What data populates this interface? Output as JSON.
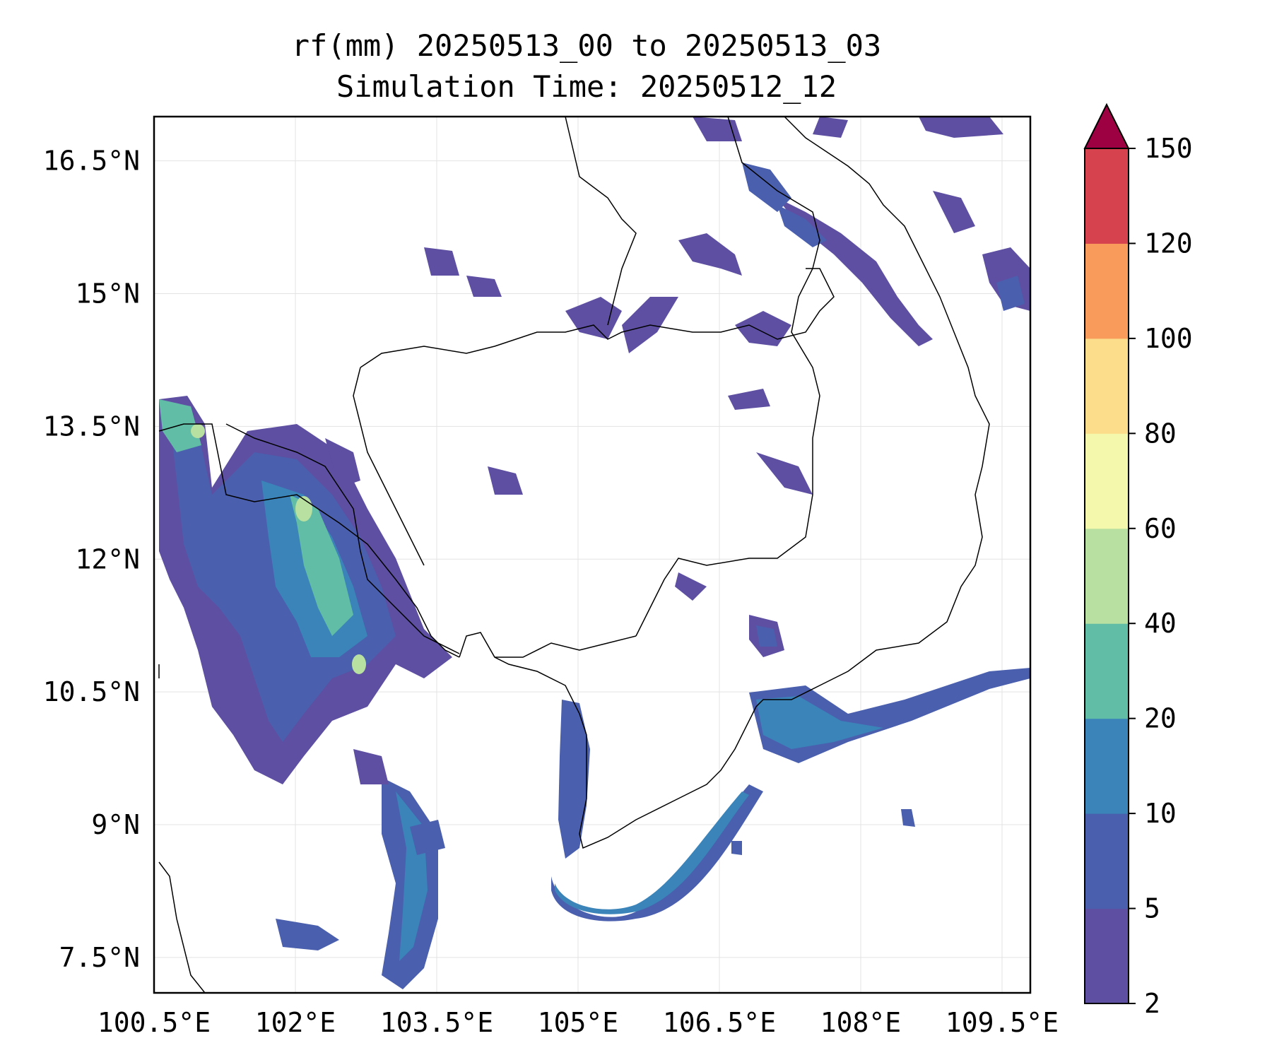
{
  "title_line1": "rf(mm) 20250513_00 to 20250513_03",
  "title_line2": "Simulation Time: 20250512_12",
  "map": {
    "lon_ticks": [
      "100.5°E",
      "102°E",
      "103.5°E",
      "105°E",
      "106.5°E",
      "108°E",
      "109.5°E"
    ],
    "lat_ticks": [
      "16.5°N",
      "15°N",
      "13.5°N",
      "12°N",
      "10.5°N",
      "9°N",
      "7.5°N"
    ],
    "lon_range": [
      100.5,
      109.8
    ],
    "lat_range": [
      7.1,
      17.0
    ],
    "gridlines": true
  },
  "colorbar": {
    "levels": [
      "2",
      "5",
      "10",
      "20",
      "40",
      "60",
      "80",
      "100",
      "120",
      "150"
    ],
    "colors": [
      "#5e4fa2",
      "#4a5fae",
      "#3b84b9",
      "#62bda6",
      "#b8e0a0",
      "#f3f8ad",
      "#fbdd8b",
      "#f99b5b",
      "#d6434f"
    ],
    "extend_color": "#9e0142",
    "extend": "max"
  },
  "colors": {
    "land_border": "#000000",
    "grid": "#dddddd"
  }
}
